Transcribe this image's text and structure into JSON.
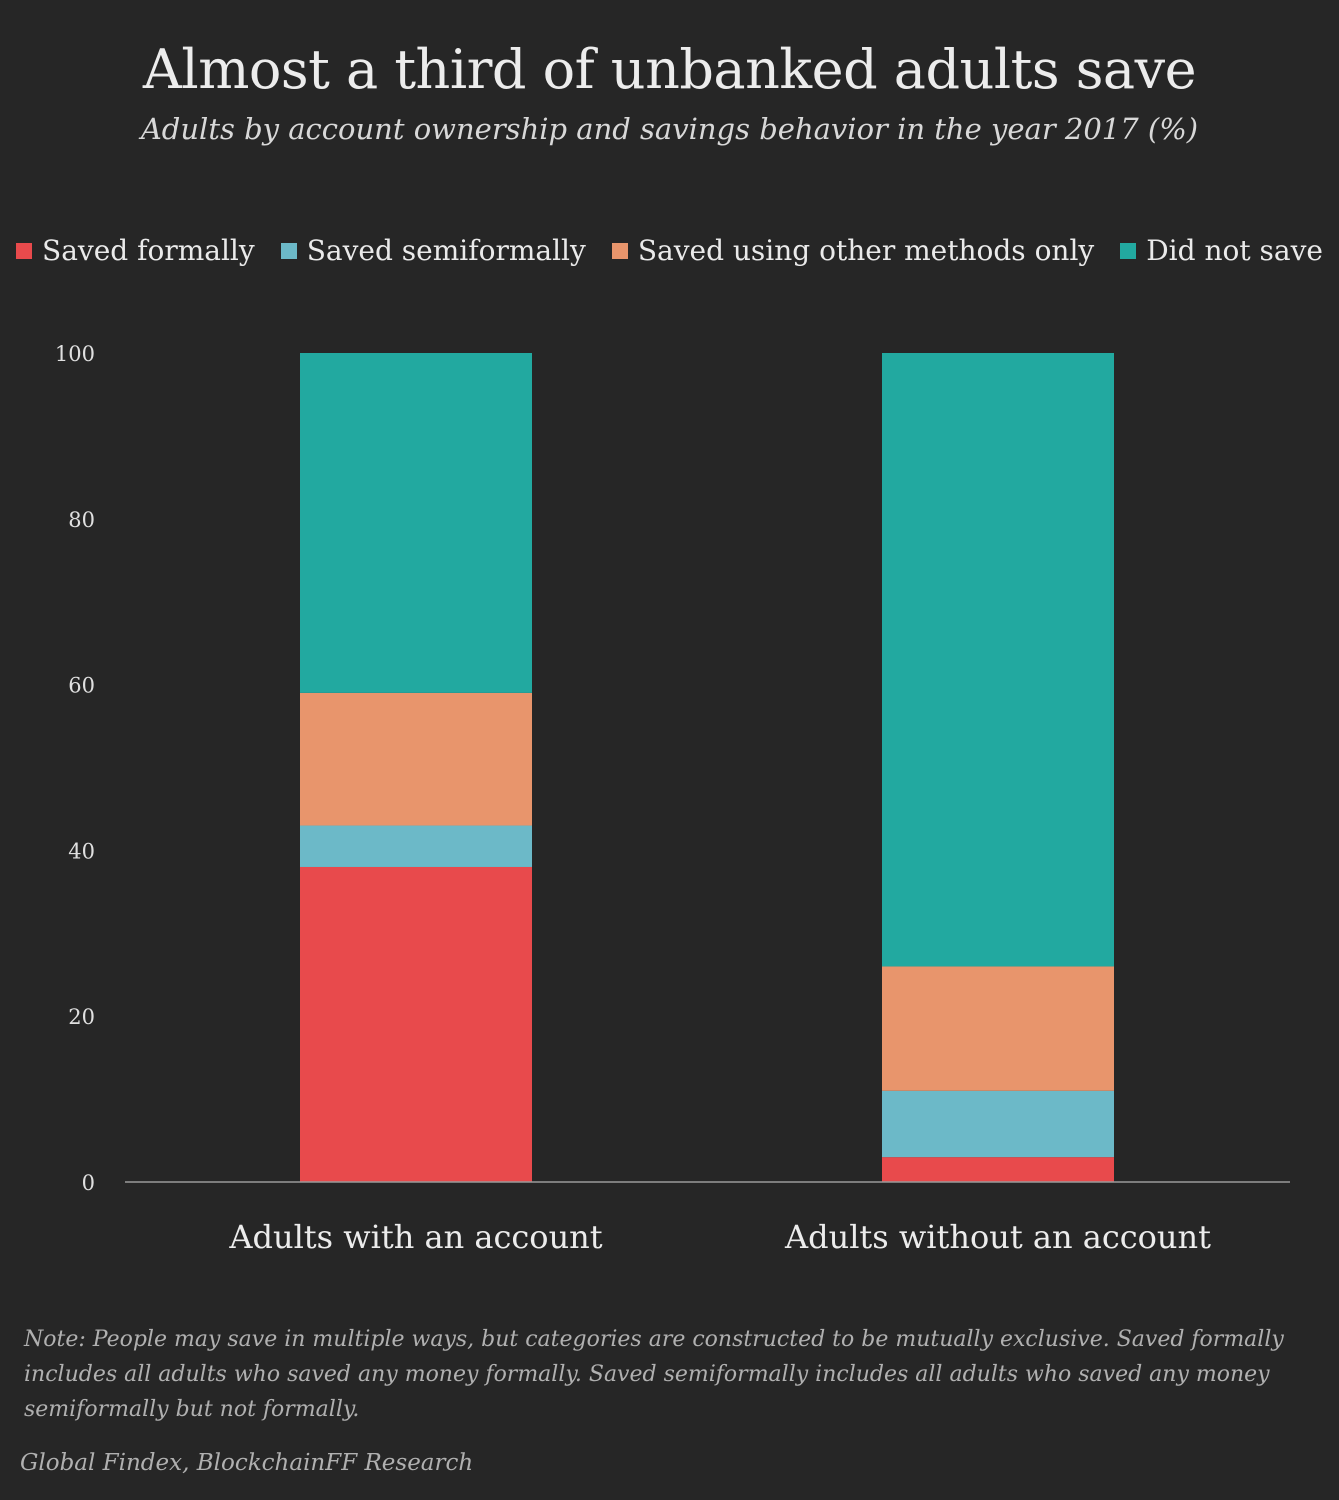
{
  "chart_data": {
    "type": "bar",
    "stacked": true,
    "title": "Almost a third of unbanked adults save",
    "subtitle": "Adults by account ownership and savings behavior in the year 2017 (%)",
    "categories": [
      "Adults with an account",
      "Adults without an account"
    ],
    "series": [
      {
        "name": "Saved formally",
        "values": [
          38,
          3
        ],
        "color": "#e84a4c"
      },
      {
        "name": "Saved semiformally",
        "values": [
          5,
          8
        ],
        "color": "#6cb9c8"
      },
      {
        "name": "Saved using other methods only",
        "values": [
          16,
          15
        ],
        "color": "#e8956c"
      },
      {
        "name": "Did not save",
        "values": [
          41,
          74
        ],
        "color": "#22a9a0"
      }
    ],
    "ylim": [
      0,
      100
    ],
    "yticks": [
      "0",
      "20",
      "40",
      "60",
      "80",
      "100"
    ],
    "legend_position": "top",
    "grid": false,
    "xlabel": "",
    "ylabel": ""
  },
  "note": "Note: People may save in multiple ways, but categories are constructed to be mutually exclusive. Saved formally includes all adults who saved any money formally. Saved semiformally includes all adults who saved any money semiformally but not formally.",
  "source": "Global Findex, BlockchainFF Research"
}
